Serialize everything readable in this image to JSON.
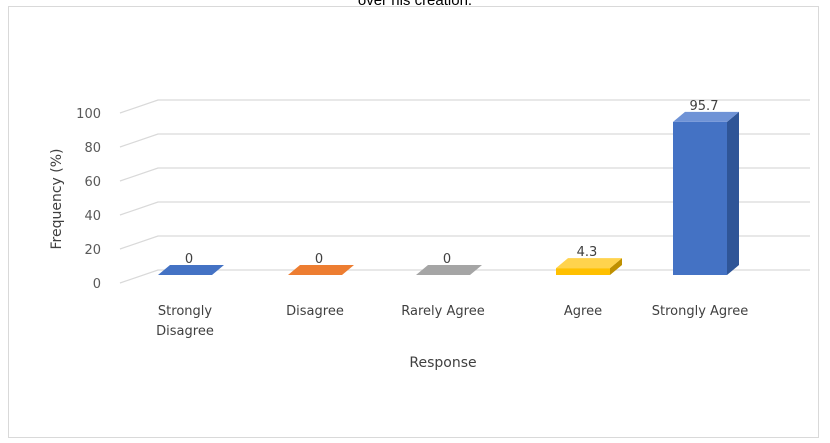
{
  "chart_data": {
    "type": "bar",
    "title": "over his creation.",
    "xlabel": "Response",
    "ylabel": "Frequency (%)",
    "categories": [
      "Strongly Disagree",
      "Disagree",
      "Rarely Agree",
      "Agree",
      "Strongly Agree"
    ],
    "category_lines": [
      [
        "Strongly",
        "Disagree"
      ],
      [
        "Disagree"
      ],
      [
        "Rarely Agree"
      ],
      [
        "Agree"
      ],
      [
        "Strongly Agree"
      ]
    ],
    "values": [
      0,
      0,
      0,
      4.3,
      95.7
    ],
    "data_labels": [
      "0",
      "0",
      "0",
      "4.3",
      "95.7"
    ],
    "ylim": [
      0,
      100
    ],
    "yticks": [
      0,
      20,
      40,
      60,
      80,
      100
    ],
    "grid": true,
    "style": "3d-column",
    "colors": {
      "front": [
        "#4472c4",
        "#ed7d31",
        "#a5a5a5",
        "#ffc000",
        "#4472c4"
      ],
      "top": [
        "#5b8bd6",
        "#f39a5c",
        "#bcbcbc",
        "#ffd34d",
        "#6f93d6"
      ],
      "side": [
        "#2f5597",
        "#c55a11",
        "#7f7f7f",
        "#bf9000",
        "#2f5597"
      ]
    }
  }
}
